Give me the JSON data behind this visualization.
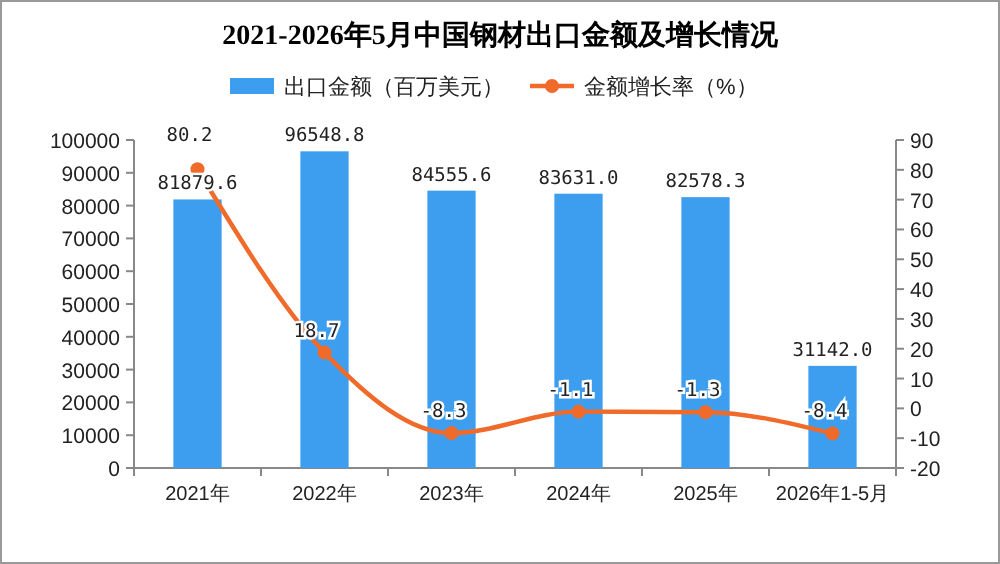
{
  "chart_data": {
    "type": "bar",
    "title": "2021-2026年5月中国钢材出口金额及增长情况",
    "categories": [
      "2021年",
      "2022年",
      "2023年",
      "2024年",
      "2025年",
      "2026年1-5月"
    ],
    "series": [
      {
        "name": "出口金额（百万美元）",
        "color": "#3d9ef0",
        "values": [
          81879.6,
          96548.8,
          84555.6,
          83631.0,
          82578.3,
          31142.0
        ],
        "value_labels": [
          "81879.6",
          "96548.8",
          "84555.6",
          "83631.0",
          "82578.3",
          "31142.0"
        ]
      },
      {
        "name": "金额增长率（%）",
        "type": "line",
        "axis": "y2",
        "color": "#f06a2a",
        "values": [
          80.2,
          18.7,
          -8.3,
          -1.1,
          -1.3,
          -8.4
        ],
        "value_labels": [
          "80.2",
          "18.7",
          "-8.3",
          "-1.1",
          "-1.3",
          "-8.4"
        ]
      }
    ],
    "ylim": [
      0,
      100000
    ],
    "yticks": [
      0,
      10000,
      20000,
      30000,
      40000,
      50000,
      60000,
      70000,
      80000,
      90000,
      100000
    ],
    "y2lim": [
      -20,
      90
    ],
    "y2ticks": [
      -20,
      -10,
      0,
      10,
      20,
      30,
      40,
      50,
      60,
      70,
      80,
      90
    ],
    "legend": "top",
    "marker": "circle",
    "grid": false
  }
}
